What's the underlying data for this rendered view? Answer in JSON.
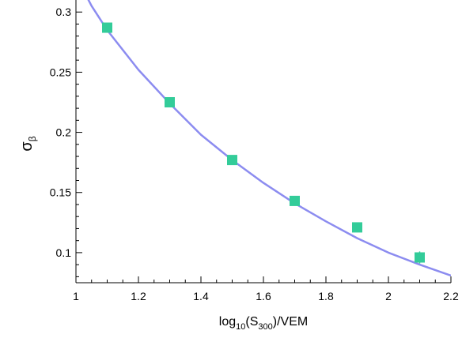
{
  "chart_data": {
    "type": "scatter",
    "xlabel": {
      "base": "log",
      "sub1": "10",
      "mid": "(S",
      "sub2": "300",
      "tail": ")/VEM"
    },
    "ylabel": {
      "base": "σ",
      "sub": "β"
    },
    "xlim": [
      1.0,
      2.2
    ],
    "ylim": [
      0.075,
      0.31
    ],
    "x_ticks": [
      1.0,
      1.2,
      1.4,
      1.6,
      1.8,
      2.0,
      2.2
    ],
    "x_tick_labels": [
      "1",
      "1.2",
      "1.4",
      "1.6",
      "1.8",
      "2",
      "2.2"
    ],
    "y_ticks": [
      0.1,
      0.15,
      0.2,
      0.25,
      0.3
    ],
    "y_tick_labels": [
      "0.1",
      "0.15",
      "0.2",
      "0.25",
      "0.3"
    ],
    "grid": false,
    "legend": "none",
    "series": [
      {
        "kind": "points",
        "marker": "square",
        "color": "#33cc99",
        "x": [
          1.1,
          1.3,
          1.5,
          1.7,
          1.9,
          2.1
        ],
        "y": [
          0.287,
          0.225,
          0.177,
          0.143,
          0.121,
          0.096
        ],
        "yerr": [
          0.003,
          0.003,
          0.003,
          0.003,
          0.003,
          0.005
        ]
      },
      {
        "kind": "line",
        "color": "#8c8cf0",
        "x": [
          1.0,
          1.05,
          1.1,
          1.2,
          1.3,
          1.4,
          1.5,
          1.6,
          1.7,
          1.8,
          1.9,
          2.0,
          2.1,
          2.2
        ],
        "y": [
          0.33,
          0.305,
          0.285,
          0.252,
          0.224,
          0.198,
          0.177,
          0.158,
          0.141,
          0.126,
          0.112,
          0.1,
          0.09,
          0.081
        ]
      }
    ]
  }
}
